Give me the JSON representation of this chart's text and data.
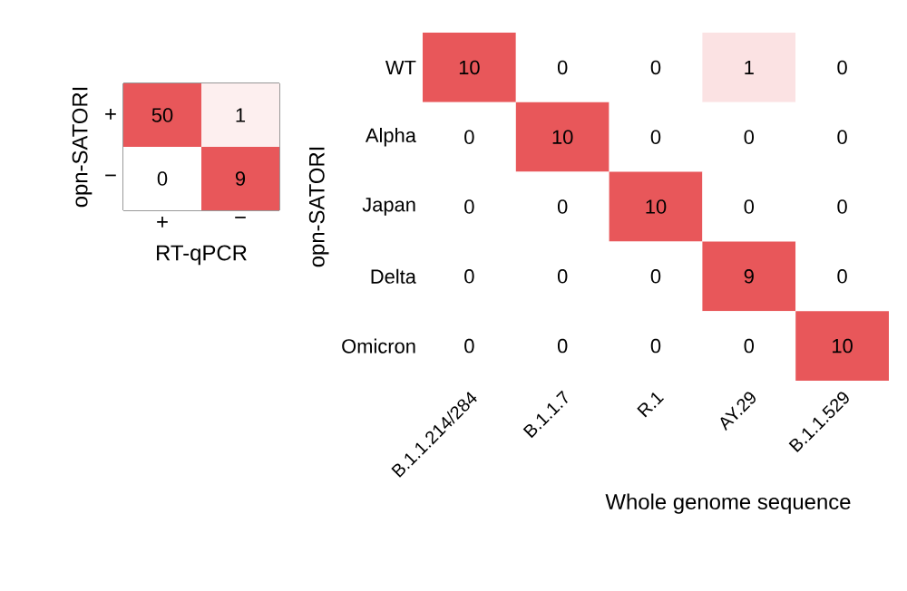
{
  "chart_data": [
    {
      "type": "heatmap",
      "categories": [
        "+",
        "−"
      ],
      "y_categories": [
        "+",
        "−"
      ],
      "xlabel": "RT-qPCR",
      "ylabel": "opn-SATORI",
      "cells": [
        [
          50,
          1
        ],
        [
          0,
          9
        ]
      ],
      "data_labels": true
    },
    {
      "type": "heatmap",
      "categories": [
        "B.1.1.214/284",
        "B.1.1.7",
        "R.1",
        "AY.29",
        "B.1.1.529"
      ],
      "y_categories": [
        "WT",
        "Alpha",
        "Japan",
        "Delta",
        "Omicron"
      ],
      "xlabel": "Whole genome sequence",
      "ylabel": "opn-SATORI",
      "cells": [
        [
          10,
          0,
          0,
          1,
          0
        ],
        [
          0,
          10,
          0,
          0,
          0
        ],
        [
          0,
          0,
          10,
          0,
          0
        ],
        [
          0,
          0,
          0,
          9,
          0
        ],
        [
          0,
          0,
          0,
          0,
          10
        ]
      ],
      "data_labels": true
    }
  ]
}
